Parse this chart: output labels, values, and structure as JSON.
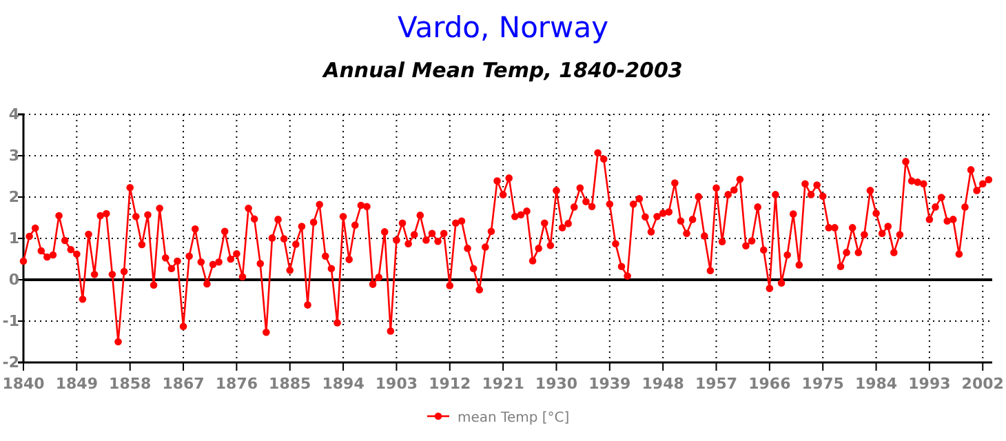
{
  "chart_data": {
    "type": "line",
    "title": "Vardo, Norway",
    "subtitle": "Annual Mean Temp, 1840-2003",
    "x": [
      1840,
      1841,
      1842,
      1843,
      1844,
      1845,
      1846,
      1847,
      1848,
      1849,
      1850,
      1851,
      1852,
      1853,
      1854,
      1855,
      1856,
      1857,
      1858,
      1859,
      1860,
      1861,
      1862,
      1863,
      1864,
      1865,
      1866,
      1867,
      1868,
      1869,
      1870,
      1871,
      1872,
      1873,
      1874,
      1875,
      1876,
      1877,
      1878,
      1879,
      1880,
      1881,
      1882,
      1883,
      1884,
      1885,
      1886,
      1887,
      1888,
      1889,
      1890,
      1891,
      1892,
      1893,
      1894,
      1895,
      1896,
      1897,
      1898,
      1899,
      1900,
      1901,
      1902,
      1903,
      1904,
      1905,
      1906,
      1907,
      1908,
      1909,
      1910,
      1911,
      1912,
      1913,
      1914,
      1915,
      1916,
      1917,
      1918,
      1919,
      1920,
      1921,
      1922,
      1923,
      1924,
      1925,
      1926,
      1927,
      1928,
      1929,
      1930,
      1931,
      1932,
      1933,
      1934,
      1935,
      1936,
      1937,
      1938,
      1939,
      1940,
      1941,
      1942,
      1943,
      1944,
      1945,
      1946,
      1947,
      1948,
      1949,
      1950,
      1951,
      1952,
      1953,
      1954,
      1955,
      1956,
      1957,
      1958,
      1959,
      1960,
      1961,
      1962,
      1963,
      1964,
      1965,
      1966,
      1967,
      1968,
      1969,
      1970,
      1971,
      1972,
      1973,
      1974,
      1975,
      1976,
      1977,
      1978,
      1979,
      1980,
      1981,
      1982,
      1983,
      1984,
      1985,
      1986,
      1987,
      1988,
      1989,
      1990,
      1991,
      1992,
      1993,
      1994,
      1995,
      1996,
      1997,
      1998,
      1999,
      2000,
      2001,
      2002,
      2003
    ],
    "series": [
      {
        "name": "mean Temp [°C]",
        "color": "#ff0000",
        "values": [
          0.45,
          1.05,
          1.25,
          0.7,
          0.55,
          0.6,
          1.55,
          0.95,
          0.73,
          0.62,
          -0.47,
          1.1,
          0.13,
          1.55,
          1.6,
          0.13,
          -1.5,
          0.2,
          2.23,
          1.53,
          0.85,
          1.57,
          -0.13,
          1.73,
          0.53,
          0.27,
          0.45,
          -1.13,
          0.57,
          1.23,
          0.43,
          -0.1,
          0.37,
          0.43,
          1.17,
          0.5,
          0.63,
          0.07,
          1.73,
          1.47,
          0.39,
          -1.27,
          1.01,
          1.46,
          0.99,
          0.23,
          0.86,
          1.29,
          -0.61,
          1.39,
          1.82,
          0.57,
          0.27,
          -1.04,
          1.53,
          0.49,
          1.32,
          1.8,
          1.77,
          -0.11,
          0.06,
          1.16,
          -1.24,
          0.96,
          1.37,
          0.87,
          1.09,
          1.56,
          0.96,
          1.12,
          0.93,
          1.12,
          -0.14,
          1.37,
          1.42,
          0.76,
          0.27,
          -0.24,
          0.79,
          1.17,
          2.39,
          2.06,
          2.46,
          1.53,
          1.57,
          1.66,
          0.46,
          0.76,
          1.37,
          0.83,
          2.16,
          1.26,
          1.36,
          1.76,
          2.22,
          1.89,
          1.77,
          3.07,
          2.92,
          1.83,
          0.87,
          0.32,
          0.09,
          1.83,
          1.96,
          1.52,
          1.16,
          1.53,
          1.61,
          1.64,
          2.34,
          1.42,
          1.12,
          1.46,
          2.01,
          1.06,
          0.22,
          2.22,
          0.92,
          2.06,
          2.17,
          2.43,
          0.82,
          0.94,
          1.76,
          0.72,
          -0.21,
          2.06,
          -0.08,
          0.6,
          1.59,
          0.36,
          2.32,
          2.06,
          2.29,
          2.02,
          1.26,
          1.26,
          0.32,
          0.66,
          1.26,
          0.66,
          1.09,
          2.16,
          1.61,
          1.12,
          1.29,
          0.66,
          1.09,
          2.86,
          2.39,
          2.36,
          2.32,
          1.46,
          1.76,
          1.99,
          1.42,
          1.46,
          0.62,
          1.76,
          2.66,
          2.16,
          2.32,
          2.42
        ]
      }
    ],
    "xlim": [
      1840,
      2003.6
    ],
    "xticks": [
      1840,
      1849,
      1858,
      1867,
      1876,
      1885,
      1894,
      1903,
      1912,
      1921,
      1930,
      1939,
      1948,
      1957,
      1966,
      1975,
      1984,
      1993,
      2002
    ],
    "ylim": [
      -2,
      4
    ],
    "yticks": [
      -2,
      -1,
      0,
      1,
      2,
      3,
      4
    ],
    "ref_lines": [
      {
        "axis": "y",
        "value": 0,
        "color": "#000000"
      }
    ],
    "grid": true,
    "legend": "bottom",
    "marker": "circle",
    "line_style": "solid"
  }
}
